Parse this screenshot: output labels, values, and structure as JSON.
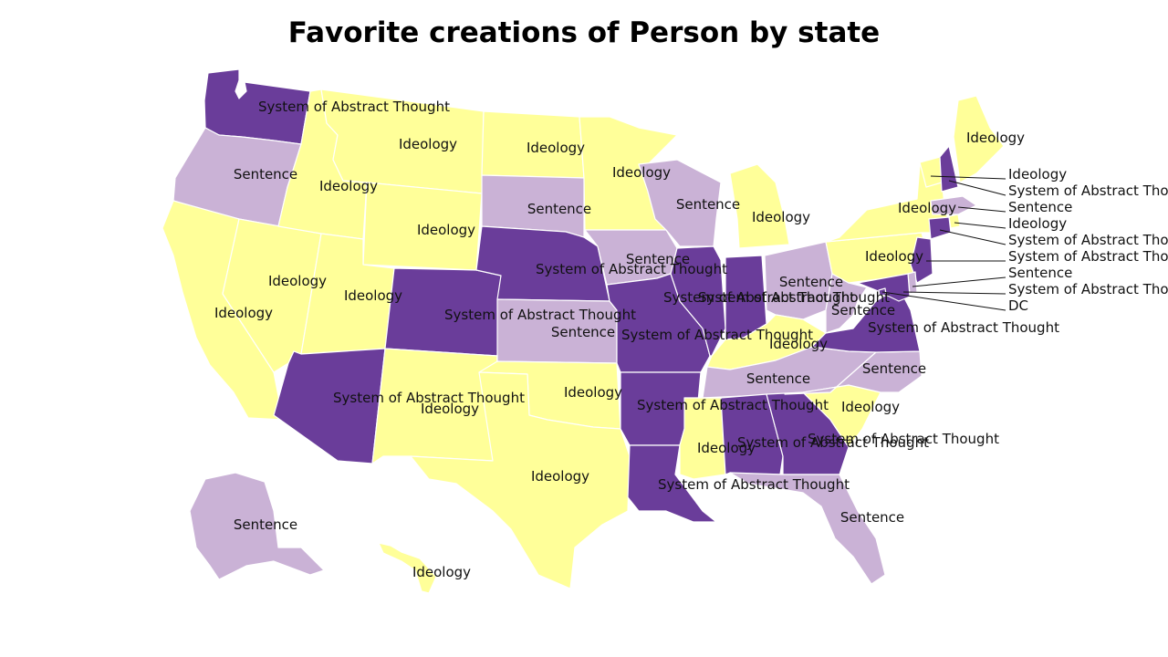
{
  "title": "Favorite creations of Person by state",
  "colors": {
    "System of Abstract Thought": "#6a3d9a",
    "Sentence": "#cab2d6",
    "Ideology": "#ffff99",
    "DC": "#6a3d9a"
  },
  "states": [
    {
      "abbr": "WA",
      "value": "System of Abstract Thought"
    },
    {
      "abbr": "OR",
      "value": "Sentence"
    },
    {
      "abbr": "CA",
      "value": "Ideology"
    },
    {
      "abbr": "NV",
      "value": "Ideology"
    },
    {
      "abbr": "ID",
      "value": "Ideology"
    },
    {
      "abbr": "MT",
      "value": "Ideology"
    },
    {
      "abbr": "WY",
      "value": "Ideology"
    },
    {
      "abbr": "UT",
      "value": "Ideology"
    },
    {
      "abbr": "AZ",
      "value": "System of Abstract Thought"
    },
    {
      "abbr": "CO",
      "value": "System of Abstract Thought"
    },
    {
      "abbr": "NM",
      "value": "Ideology"
    },
    {
      "abbr": "ND",
      "value": "Ideology"
    },
    {
      "abbr": "SD",
      "value": "Sentence"
    },
    {
      "abbr": "NE",
      "value": "System of Abstract Thought"
    },
    {
      "abbr": "KS",
      "value": "Sentence"
    },
    {
      "abbr": "OK",
      "value": "Ideology"
    },
    {
      "abbr": "TX",
      "value": "Ideology"
    },
    {
      "abbr": "MN",
      "value": "Ideology"
    },
    {
      "abbr": "IA",
      "value": "Sentence"
    },
    {
      "abbr": "MO",
      "value": "System of Abstract Thought"
    },
    {
      "abbr": "AR",
      "value": "System of Abstract Thought"
    },
    {
      "abbr": "LA",
      "value": "System of Abstract Thought"
    },
    {
      "abbr": "WI",
      "value": "Sentence"
    },
    {
      "abbr": "IL",
      "value": "System of Abstract Thought"
    },
    {
      "abbr": "MI",
      "value": "Ideology"
    },
    {
      "abbr": "IN",
      "value": "System of Abstract Thought"
    },
    {
      "abbr": "OH",
      "value": "Sentence"
    },
    {
      "abbr": "KY",
      "value": "Ideology"
    },
    {
      "abbr": "TN",
      "value": "Sentence"
    },
    {
      "abbr": "MS",
      "value": "Ideology"
    },
    {
      "abbr": "AL",
      "value": "System of Abstract Thought"
    },
    {
      "abbr": "GA",
      "value": "System of Abstract Thought"
    },
    {
      "abbr": "FL",
      "value": "Sentence"
    },
    {
      "abbr": "SC",
      "value": "Ideology"
    },
    {
      "abbr": "NC",
      "value": "Sentence"
    },
    {
      "abbr": "VA",
      "value": "System of Abstract Thought"
    },
    {
      "abbr": "WV",
      "value": "Sentence"
    },
    {
      "abbr": "PA",
      "value": "Ideology"
    },
    {
      "abbr": "NY",
      "value": "Ideology"
    },
    {
      "abbr": "VT",
      "value": "Ideology"
    },
    {
      "abbr": "NH",
      "value": "System of Abstract Thought"
    },
    {
      "abbr": "ME",
      "value": "Ideology"
    },
    {
      "abbr": "MA",
      "value": "Sentence"
    },
    {
      "abbr": "RI",
      "value": "Ideology"
    },
    {
      "abbr": "CT",
      "value": "System of Abstract Thought"
    },
    {
      "abbr": "NJ",
      "value": "System of Abstract Thought"
    },
    {
      "abbr": "DE",
      "value": "Sentence"
    },
    {
      "abbr": "MD",
      "value": "System of Abstract Thought"
    },
    {
      "abbr": "DC",
      "value": "DC"
    },
    {
      "abbr": "AK",
      "value": "Sentence"
    },
    {
      "abbr": "HI",
      "value": "Ideology"
    }
  ]
}
